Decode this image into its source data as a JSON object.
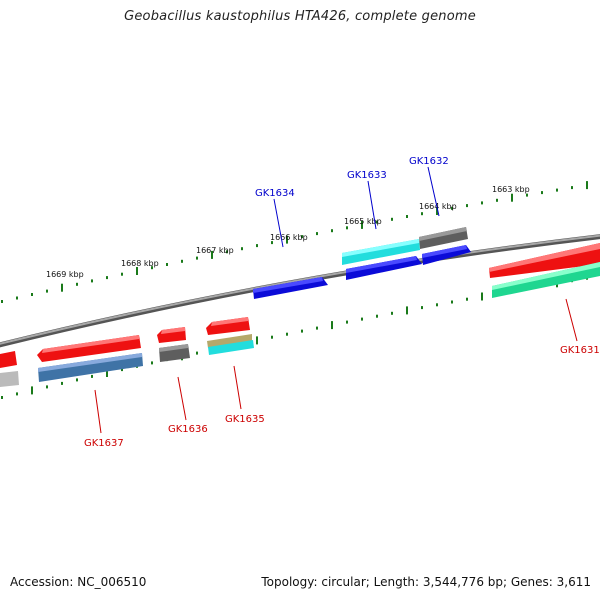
{
  "title": "Geobacillus kaustophilus HTA426, complete genome",
  "footer": {
    "accession": "Accession: NC_006510",
    "summary": "Topology: circular; Length: 3,544,776 bp; Genes: 3,611"
  },
  "colors": {
    "backbone": "#7f7f7f",
    "tick": "#1a7a1a",
    "label_forward": "#0000cc",
    "label_reverse": "#cc0000"
  },
  "tick_labels": [
    "1669 kbp",
    "1668 kbp",
    "1667 kbp",
    "1666 kbp",
    "1665 kbp",
    "1664 kbp",
    "1663 kbp"
  ],
  "gene_labels": {
    "GK1631": "GK1631",
    "GK1632": "GK1632",
    "GK1633": "GK1633",
    "GK1634": "GK1634",
    "GK1635": "GK1635",
    "GK1636": "GK1636",
    "GK1637": "GK1637"
  },
  "feature_colors": {
    "red": "#ee1111",
    "blue": "#1111dd",
    "cyan": "#22dddd",
    "gray": "#666666",
    "steel": "#4477aa",
    "green": "#22dd99",
    "olive": "#bbaa66",
    "lightgray": "#bbbbbb"
  }
}
